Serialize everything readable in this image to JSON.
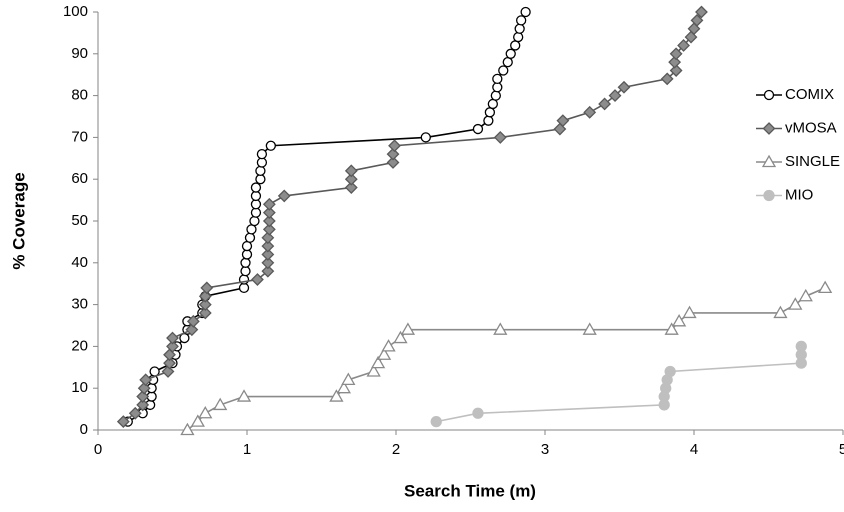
{
  "chart_data": {
    "type": "line",
    "x_label": "Search Time (m)",
    "y_label": "% Coverage",
    "xlim": [
      0,
      5
    ],
    "ylim": [
      0,
      100
    ],
    "xticks": [
      0,
      1,
      2,
      3,
      4,
      5
    ],
    "yticks": [
      0,
      10,
      20,
      30,
      40,
      50,
      60,
      70,
      80,
      90,
      100
    ],
    "grid": false,
    "legend": "right",
    "series": [
      {
        "name": "COMIX",
        "color": "#000000",
        "marker": "circle",
        "marker_fill": "#ffffff",
        "x": [
          0.2,
          0.3,
          0.35,
          0.36,
          0.36,
          0.37,
          0.38,
          0.5,
          0.52,
          0.53,
          0.58,
          0.6,
          0.6,
          0.7,
          0.7,
          0.72,
          0.98,
          0.98,
          0.99,
          0.99,
          1.0,
          1.0,
          1.02,
          1.03,
          1.05,
          1.06,
          1.06,
          1.06,
          1.06,
          1.09,
          1.09,
          1.1,
          1.1,
          1.16,
          2.2,
          2.55,
          2.62,
          2.63,
          2.65,
          2.67,
          2.68,
          2.68,
          2.72,
          2.75,
          2.77,
          2.8,
          2.82,
          2.83,
          2.84,
          2.87
        ],
        "values": [
          2,
          4,
          6,
          8,
          10,
          12,
          14,
          16,
          18,
          20,
          22,
          24,
          26,
          28,
          30,
          32,
          34,
          36,
          38,
          40,
          42,
          44,
          46,
          48,
          50,
          52,
          54,
          56,
          58,
          60,
          62,
          64,
          66,
          68,
          70,
          72,
          74,
          76,
          78,
          80,
          82,
          84,
          86,
          88,
          90,
          92,
          94,
          96,
          98,
          100
        ]
      },
      {
        "name": "vMOSA",
        "color": "#595959",
        "marker": "diamond",
        "marker_fill": "#8c8c8c",
        "x": [
          0.17,
          0.25,
          0.3,
          0.3,
          0.31,
          0.32,
          0.47,
          0.48,
          0.48,
          0.5,
          0.5,
          0.63,
          0.64,
          0.72,
          0.72,
          0.72,
          0.73,
          1.07,
          1.14,
          1.14,
          1.14,
          1.14,
          1.14,
          1.15,
          1.15,
          1.15,
          1.15,
          1.25,
          1.7,
          1.7,
          1.7,
          1.98,
          1.98,
          1.99,
          2.7,
          3.1,
          3.12,
          3.3,
          3.4,
          3.47,
          3.53,
          3.82,
          3.88,
          3.87,
          3.88,
          3.93,
          3.98,
          4.0,
          4.02,
          4.05
        ],
        "values": [
          2,
          4,
          6,
          8,
          10,
          12,
          14,
          16,
          18,
          20,
          22,
          24,
          26,
          28,
          30,
          32,
          34,
          36,
          38,
          40,
          42,
          44,
          46,
          48,
          50,
          52,
          54,
          56,
          58,
          60,
          62,
          64,
          66,
          68,
          70,
          72,
          74,
          76,
          78,
          80,
          82,
          84,
          86,
          88,
          90,
          92,
          94,
          96,
          98,
          100
        ]
      },
      {
        "name": "SINGLE",
        "color": "#8a8a8a",
        "marker": "triangle",
        "marker_fill": "#ffffff",
        "x": [
          0.6,
          0.67,
          0.72,
          0.82,
          0.98,
          1.6,
          1.65,
          1.68,
          1.85,
          1.88,
          1.92,
          1.95,
          2.03,
          2.08,
          2.7,
          3.3,
          3.85,
          3.9,
          3.97,
          4.58,
          4.68,
          4.75,
          4.88
        ],
        "values": [
          0,
          2,
          4,
          6,
          8,
          8,
          10,
          12,
          14,
          16,
          18,
          20,
          22,
          24,
          24,
          24,
          24,
          26,
          28,
          28,
          30,
          32,
          34
        ]
      },
      {
        "name": "MIO",
        "color": "#bfbfbf",
        "marker": "dot",
        "marker_fill": "#bfbfbf",
        "x": [
          2.27,
          2.55,
          3.8,
          3.8,
          3.81,
          3.82,
          3.84,
          4.72,
          4.72,
          4.72
        ],
        "values": [
          2,
          4,
          6,
          8,
          10,
          12,
          14,
          16,
          18,
          20
        ]
      }
    ]
  }
}
